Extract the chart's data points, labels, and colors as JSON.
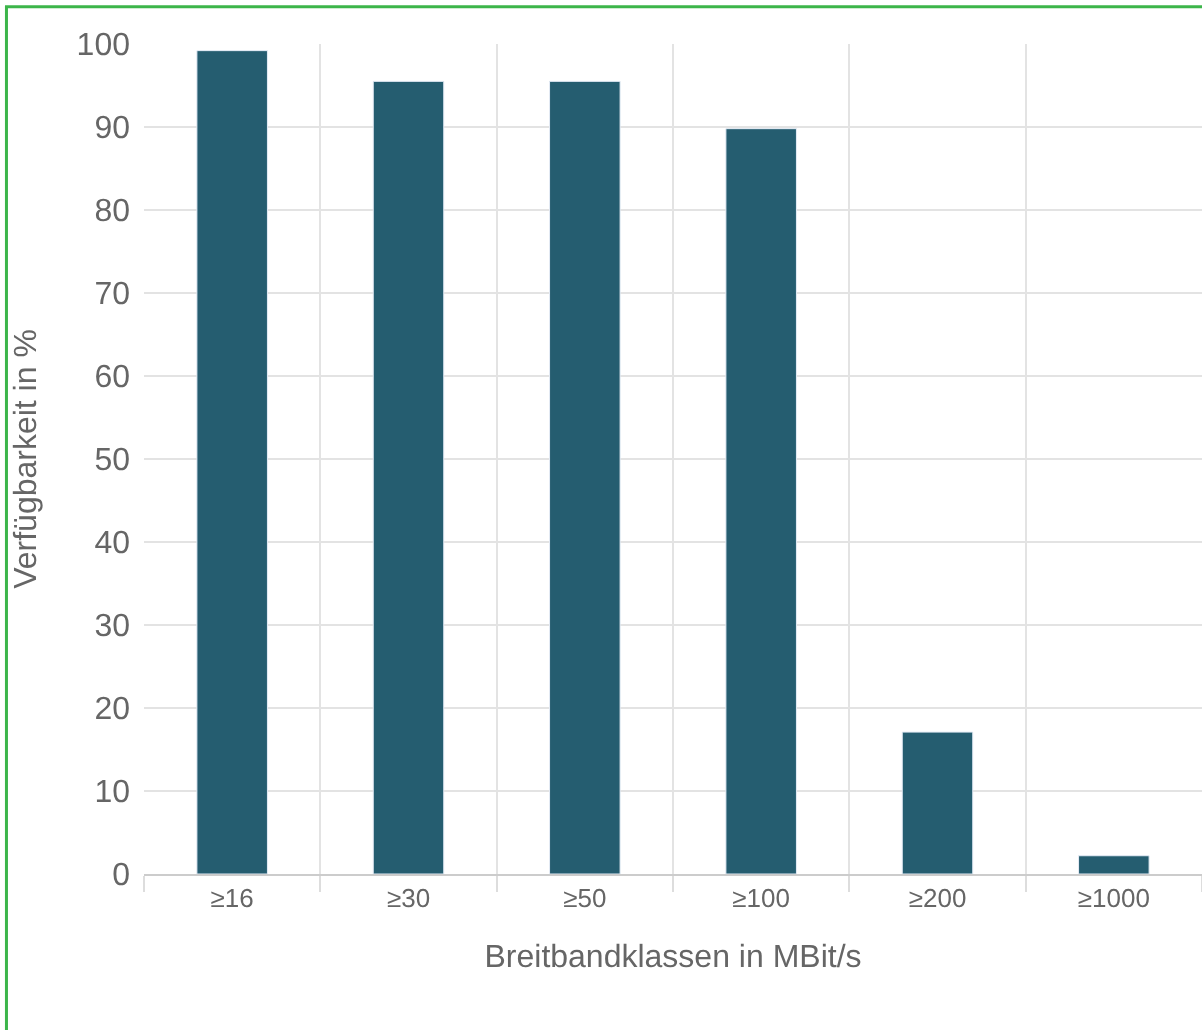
{
  "chart_data": {
    "type": "bar",
    "xlabel": "Breitbandklassen in MBit/s",
    "ylabel": "Verfügbarkeit in %",
    "categories": [
      "≥16",
      "≥30",
      "≥50",
      "≥100",
      "≥200",
      "≥1000"
    ],
    "values": [
      99.2,
      95.5,
      95.5,
      89.8,
      17.1,
      2.2
    ],
    "color": "#255d70",
    "ylim": [
      0,
      100
    ],
    "yticks": [
      0,
      10,
      20,
      30,
      40,
      50,
      60,
      70,
      80,
      90,
      100
    ],
    "grid": true,
    "legend": false
  }
}
